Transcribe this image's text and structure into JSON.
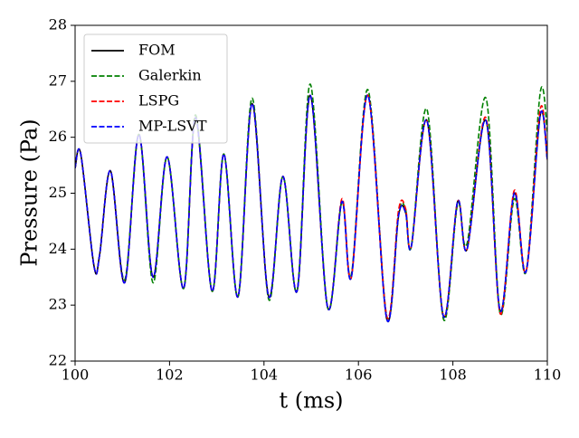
{
  "chart_data": {
    "type": "line",
    "xlabel": "t (ms)",
    "ylabel": "Pressure (Pa)",
    "x": [
      100.0,
      100.12,
      100.4,
      100.52,
      100.75,
      101.05,
      101.35,
      101.65,
      101.95,
      102.3,
      102.55,
      102.9,
      103.15,
      103.45,
      103.75,
      104.1,
      104.4,
      104.7,
      104.98,
      105.35,
      105.65,
      105.85,
      106.2,
      106.6,
      106.85,
      107.0,
      107.12,
      107.45,
      107.8,
      108.1,
      108.3,
      108.7,
      109.0,
      109.3,
      109.55,
      109.85,
      110.0
    ],
    "series": [
      {
        "name": "FOM",
        "color": "#000000",
        "dash": false,
        "values": [
          25.45,
          25.7,
          23.7,
          23.9,
          25.4,
          23.4,
          26.05,
          23.5,
          25.65,
          23.3,
          26.35,
          23.25,
          25.7,
          23.15,
          26.6,
          23.15,
          25.3,
          23.25,
          26.75,
          22.95,
          24.85,
          23.5,
          26.75,
          22.75,
          24.6,
          24.65,
          24.05,
          26.3,
          22.8,
          24.85,
          24.0,
          26.3,
          22.9,
          25.0,
          23.6,
          26.4,
          25.6
        ]
      },
      {
        "name": "Galerkin",
        "color": "#008000",
        "dash": true,
        "values": [
          25.45,
          25.7,
          23.7,
          23.9,
          25.4,
          23.45,
          26.05,
          23.4,
          25.65,
          23.3,
          26.4,
          23.25,
          25.7,
          23.15,
          26.7,
          23.1,
          25.3,
          23.25,
          26.95,
          22.95,
          24.85,
          23.55,
          26.85,
          22.8,
          24.65,
          24.7,
          24.05,
          26.5,
          22.75,
          24.8,
          24.1,
          26.7,
          22.85,
          24.9,
          23.6,
          26.8,
          26.1
        ]
      },
      {
        "name": "LSPG",
        "color": "#ff0000",
        "dash": true,
        "values": [
          25.45,
          25.7,
          23.7,
          23.9,
          25.4,
          23.4,
          26.05,
          23.5,
          25.65,
          23.3,
          26.35,
          23.25,
          25.7,
          23.15,
          26.6,
          23.15,
          25.3,
          23.25,
          26.75,
          22.95,
          24.9,
          23.5,
          26.75,
          22.8,
          24.7,
          24.72,
          24.05,
          26.3,
          22.8,
          24.85,
          24.0,
          26.35,
          22.85,
          25.05,
          23.6,
          26.5,
          25.6
        ]
      },
      {
        "name": "MP-LSVT",
        "color": "#0000ff",
        "dash": true,
        "values": [
          25.45,
          25.7,
          23.7,
          23.9,
          25.4,
          23.4,
          26.05,
          23.5,
          25.65,
          23.3,
          26.35,
          23.25,
          25.7,
          23.15,
          26.6,
          23.15,
          25.3,
          23.25,
          26.75,
          22.95,
          24.85,
          23.5,
          26.75,
          22.75,
          24.6,
          24.65,
          24.05,
          26.3,
          22.8,
          24.85,
          24.0,
          26.3,
          22.9,
          25.0,
          23.6,
          26.4,
          25.6
        ]
      }
    ],
    "xlim": [
      100,
      110
    ],
    "xticks": [
      100,
      102,
      104,
      106,
      108,
      110
    ],
    "ylim": [
      22,
      28
    ],
    "yticks": [
      22,
      23,
      24,
      25,
      26,
      27,
      28
    ],
    "legend": "upper-left"
  }
}
